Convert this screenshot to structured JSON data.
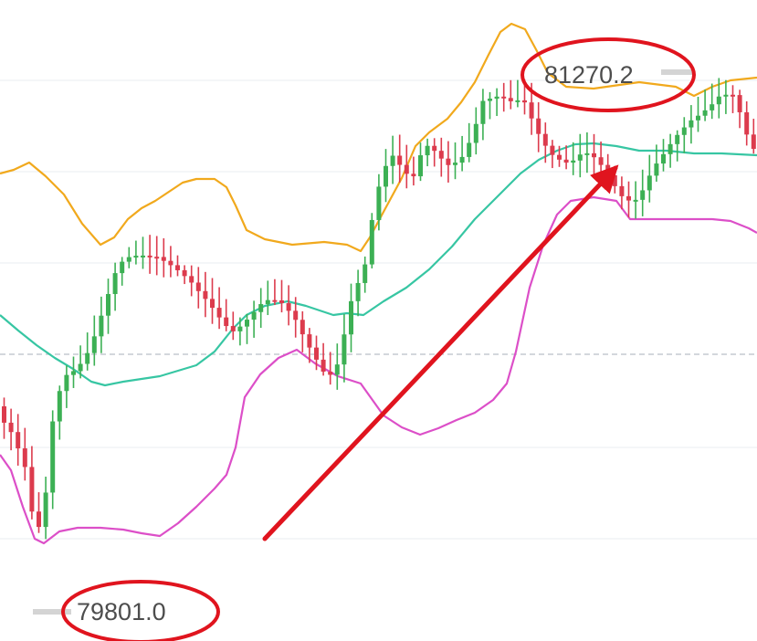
{
  "chart_data": {
    "type": "candlestick",
    "annotations": {
      "high_label": "81270.2",
      "low_label": "79801.0"
    },
    "colors": {
      "up": "#3cb054",
      "down": "#dc3b4d",
      "upper_band": "#f1a91d",
      "middle_band": "#37c6a3",
      "lower_band": "#dc4fc8",
      "annotation": "#e0141e",
      "grid": "#eaedf1"
    },
    "grid": true
  }
}
